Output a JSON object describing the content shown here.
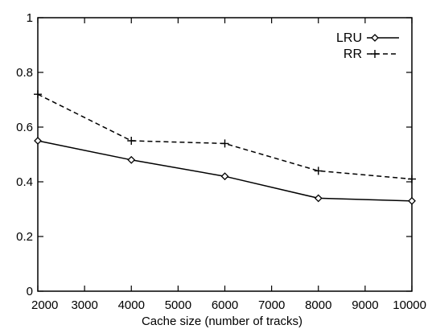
{
  "chart_data": {
    "type": "line",
    "title": "",
    "xlabel": "Cache size (number of tracks)",
    "ylabel": "",
    "x": [
      2000,
      4000,
      6000,
      8000,
      10000
    ],
    "xlim": [
      2000,
      10000
    ],
    "ylim": [
      0,
      1
    ],
    "xticks": [
      "2000",
      "3000",
      "4000",
      "5000",
      "6000",
      "7000",
      "8000",
      "9000",
      "10000"
    ],
    "yticks": [
      "0",
      "0.2",
      "0.4",
      "0.6",
      "0.8",
      "1"
    ],
    "grid": false,
    "legend_position": "top-right",
    "series": [
      {
        "name": "LRU",
        "values": [
          0.55,
          0.48,
          0.42,
          0.34,
          0.33
        ],
        "line_style": "solid",
        "marker": "diamond"
      },
      {
        "name": "RR",
        "values": [
          0.72,
          0.55,
          0.54,
          0.44,
          0.41
        ],
        "line_style": "dashed",
        "marker": "plus"
      }
    ],
    "colors": {
      "line": "#000000",
      "axis": "#000000",
      "background": "#ffffff"
    }
  }
}
